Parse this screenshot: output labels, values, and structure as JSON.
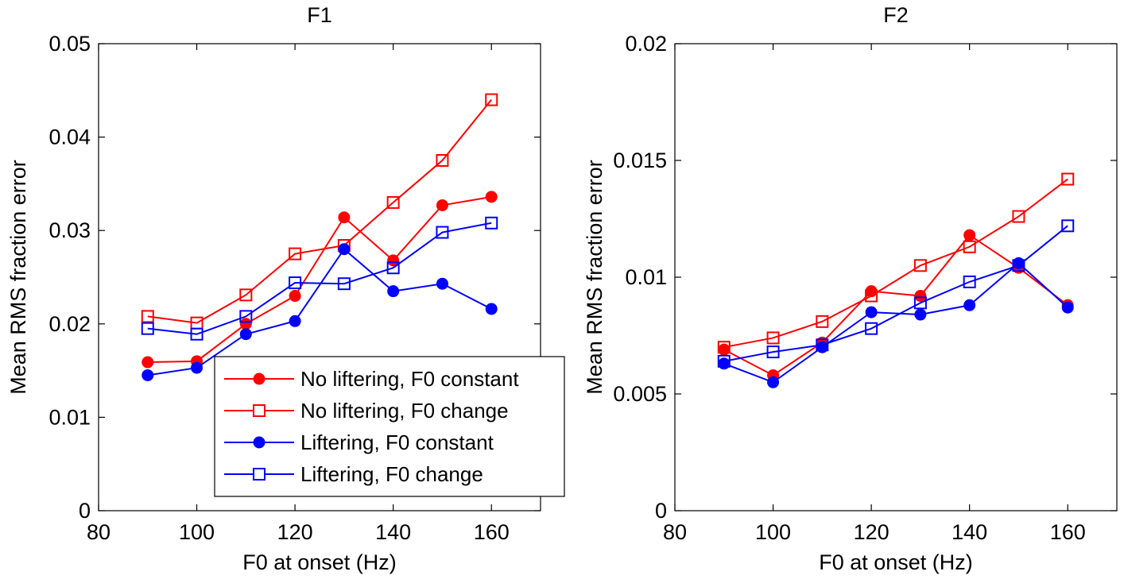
{
  "chart_data": [
    {
      "type": "line",
      "title": "F1",
      "xlabel": "F0 at onset (Hz)",
      "ylabel": "Mean RMS fraction error",
      "xlim": [
        80,
        170
      ],
      "ylim": [
        0,
        0.05
      ],
      "xticks": [
        80,
        100,
        120,
        140,
        160
      ],
      "yticks": [
        0,
        0.01,
        0.02,
        0.03,
        0.04,
        0.05
      ],
      "xtick_labels": [
        "80",
        "100",
        "120",
        "140",
        "160"
      ],
      "ytick_labels": [
        "0",
        "0.01",
        "0.02",
        "0.03",
        "0.04",
        "0.05"
      ],
      "grid": false,
      "legend_position": "bottom-right",
      "x": [
        90,
        100,
        110,
        120,
        130,
        140,
        150,
        160
      ],
      "series": [
        {
          "name": "No liftering, F0 constant",
          "color": "#ff0000",
          "marker": "filled-circle",
          "values": [
            0.0159,
            0.016,
            0.02,
            0.023,
            0.0314,
            0.0268,
            0.0327,
            0.0336
          ]
        },
        {
          "name": "No liftering, F0 change",
          "color": "#ff0000",
          "marker": "open-square",
          "values": [
            0.0208,
            0.0201,
            0.0231,
            0.0275,
            0.0284,
            0.033,
            0.0375,
            0.044
          ]
        },
        {
          "name": "Liftering, F0 constant",
          "color": "#0000ff",
          "marker": "filled-circle",
          "values": [
            0.0145,
            0.0153,
            0.0189,
            0.0203,
            0.028,
            0.0235,
            0.0243,
            0.0216
          ]
        },
        {
          "name": "Liftering, F0 change",
          "color": "#0000ff",
          "marker": "open-square",
          "values": [
            0.0195,
            0.0189,
            0.0208,
            0.0244,
            0.0243,
            0.026,
            0.0298,
            0.0308
          ]
        }
      ]
    },
    {
      "type": "line",
      "title": "F2",
      "xlabel": "F0 at onset (Hz)",
      "ylabel": "Mean RMS fraction error",
      "xlim": [
        80,
        170
      ],
      "ylim": [
        0,
        0.02
      ],
      "xticks": [
        80,
        100,
        120,
        140,
        160
      ],
      "yticks": [
        0,
        0.005,
        0.01,
        0.015,
        0.02
      ],
      "xtick_labels": [
        "80",
        "100",
        "120",
        "140",
        "160"
      ],
      "ytick_labels": [
        "0",
        "0.005",
        "0.01",
        "0.015",
        "0.02"
      ],
      "grid": false,
      "x": [
        90,
        100,
        110,
        120,
        130,
        140,
        150,
        160
      ],
      "series": [
        {
          "name": "No liftering, F0 constant",
          "color": "#ff0000",
          "marker": "filled-circle",
          "values": [
            0.0069,
            0.0058,
            0.0072,
            0.0094,
            0.0092,
            0.0118,
            0.0104,
            0.0088
          ]
        },
        {
          "name": "No liftering, F0 change",
          "color": "#ff0000",
          "marker": "open-square",
          "values": [
            0.007,
            0.0074,
            0.0081,
            0.0092,
            0.0105,
            0.0113,
            0.0126,
            0.0142
          ]
        },
        {
          "name": "Liftering, F0 constant",
          "color": "#0000ff",
          "marker": "filled-circle",
          "values": [
            0.0063,
            0.0055,
            0.007,
            0.0085,
            0.0084,
            0.0088,
            0.0106,
            0.0087
          ]
        },
        {
          "name": "Liftering, F0 change",
          "color": "#0000ff",
          "marker": "open-square",
          "values": [
            0.0064,
            0.0068,
            0.0071,
            0.0078,
            0.0089,
            0.0098,
            0.0105,
            0.0122
          ]
        }
      ]
    }
  ]
}
